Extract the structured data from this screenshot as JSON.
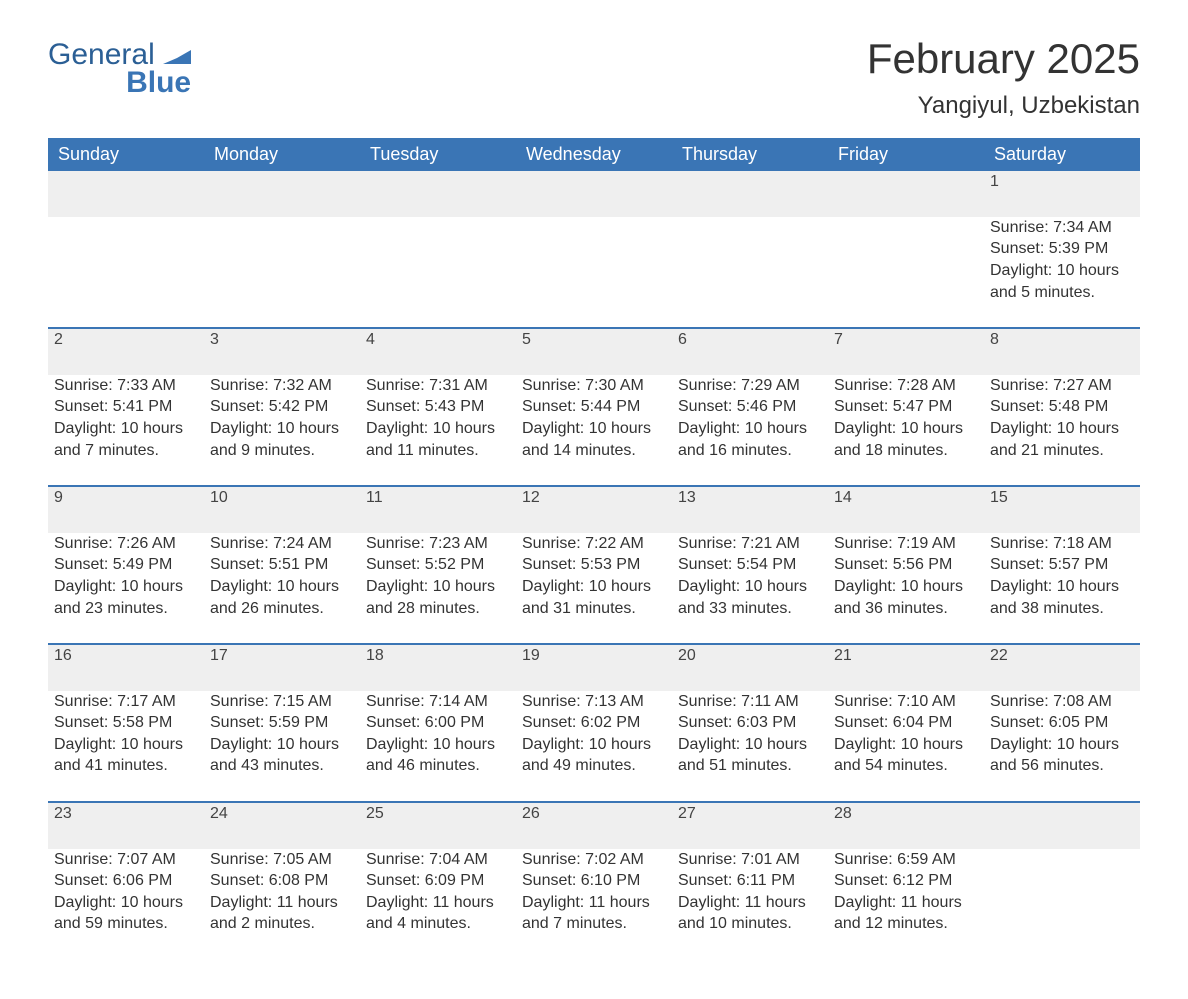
{
  "logo": {
    "text_general": "General",
    "text_blue": "Blue"
  },
  "header": {
    "month_title": "February 2025",
    "location": "Yangiyul, Uzbekistan"
  },
  "colors": {
    "header_blue": "#3a75b5",
    "row_grey": "#efefef",
    "border_blue": "#3a75b5",
    "text": "#333333",
    "background": "#ffffff"
  },
  "typography": {
    "month_title_fontsize": 42,
    "location_fontsize": 24,
    "weekday_fontsize": 18,
    "daynum_fontsize": 18,
    "detail_fontsize": 16,
    "font_family": "Arial"
  },
  "weekdays": [
    "Sunday",
    "Monday",
    "Tuesday",
    "Wednesday",
    "Thursday",
    "Friday",
    "Saturday"
  ],
  "labels": {
    "sunrise": "Sunrise:",
    "sunset": "Sunset:",
    "daylight": "Daylight:"
  },
  "calendar": {
    "leading_blanks": 6,
    "trailing_blanks": 1,
    "days": [
      {
        "n": 1,
        "sunrise": "7:34 AM",
        "sunset": "5:39 PM",
        "daylight": "10 hours and 5 minutes."
      },
      {
        "n": 2,
        "sunrise": "7:33 AM",
        "sunset": "5:41 PM",
        "daylight": "10 hours and 7 minutes."
      },
      {
        "n": 3,
        "sunrise": "7:32 AM",
        "sunset": "5:42 PM",
        "daylight": "10 hours and 9 minutes."
      },
      {
        "n": 4,
        "sunrise": "7:31 AM",
        "sunset": "5:43 PM",
        "daylight": "10 hours and 11 minutes."
      },
      {
        "n": 5,
        "sunrise": "7:30 AM",
        "sunset": "5:44 PM",
        "daylight": "10 hours and 14 minutes."
      },
      {
        "n": 6,
        "sunrise": "7:29 AM",
        "sunset": "5:46 PM",
        "daylight": "10 hours and 16 minutes."
      },
      {
        "n": 7,
        "sunrise": "7:28 AM",
        "sunset": "5:47 PM",
        "daylight": "10 hours and 18 minutes."
      },
      {
        "n": 8,
        "sunrise": "7:27 AM",
        "sunset": "5:48 PM",
        "daylight": "10 hours and 21 minutes."
      },
      {
        "n": 9,
        "sunrise": "7:26 AM",
        "sunset": "5:49 PM",
        "daylight": "10 hours and 23 minutes."
      },
      {
        "n": 10,
        "sunrise": "7:24 AM",
        "sunset": "5:51 PM",
        "daylight": "10 hours and 26 minutes."
      },
      {
        "n": 11,
        "sunrise": "7:23 AM",
        "sunset": "5:52 PM",
        "daylight": "10 hours and 28 minutes."
      },
      {
        "n": 12,
        "sunrise": "7:22 AM",
        "sunset": "5:53 PM",
        "daylight": "10 hours and 31 minutes."
      },
      {
        "n": 13,
        "sunrise": "7:21 AM",
        "sunset": "5:54 PM",
        "daylight": "10 hours and 33 minutes."
      },
      {
        "n": 14,
        "sunrise": "7:19 AM",
        "sunset": "5:56 PM",
        "daylight": "10 hours and 36 minutes."
      },
      {
        "n": 15,
        "sunrise": "7:18 AM",
        "sunset": "5:57 PM",
        "daylight": "10 hours and 38 minutes."
      },
      {
        "n": 16,
        "sunrise": "7:17 AM",
        "sunset": "5:58 PM",
        "daylight": "10 hours and 41 minutes."
      },
      {
        "n": 17,
        "sunrise": "7:15 AM",
        "sunset": "5:59 PM",
        "daylight": "10 hours and 43 minutes."
      },
      {
        "n": 18,
        "sunrise": "7:14 AM",
        "sunset": "6:00 PM",
        "daylight": "10 hours and 46 minutes."
      },
      {
        "n": 19,
        "sunrise": "7:13 AM",
        "sunset": "6:02 PM",
        "daylight": "10 hours and 49 minutes."
      },
      {
        "n": 20,
        "sunrise": "7:11 AM",
        "sunset": "6:03 PM",
        "daylight": "10 hours and 51 minutes."
      },
      {
        "n": 21,
        "sunrise": "7:10 AM",
        "sunset": "6:04 PM",
        "daylight": "10 hours and 54 minutes."
      },
      {
        "n": 22,
        "sunrise": "7:08 AM",
        "sunset": "6:05 PM",
        "daylight": "10 hours and 56 minutes."
      },
      {
        "n": 23,
        "sunrise": "7:07 AM",
        "sunset": "6:06 PM",
        "daylight": "10 hours and 59 minutes."
      },
      {
        "n": 24,
        "sunrise": "7:05 AM",
        "sunset": "6:08 PM",
        "daylight": "11 hours and 2 minutes."
      },
      {
        "n": 25,
        "sunrise": "7:04 AM",
        "sunset": "6:09 PM",
        "daylight": "11 hours and 4 minutes."
      },
      {
        "n": 26,
        "sunrise": "7:02 AM",
        "sunset": "6:10 PM",
        "daylight": "11 hours and 7 minutes."
      },
      {
        "n": 27,
        "sunrise": "7:01 AM",
        "sunset": "6:11 PM",
        "daylight": "11 hours and 10 minutes."
      },
      {
        "n": 28,
        "sunrise": "6:59 AM",
        "sunset": "6:12 PM",
        "daylight": "11 hours and 12 minutes."
      }
    ]
  }
}
